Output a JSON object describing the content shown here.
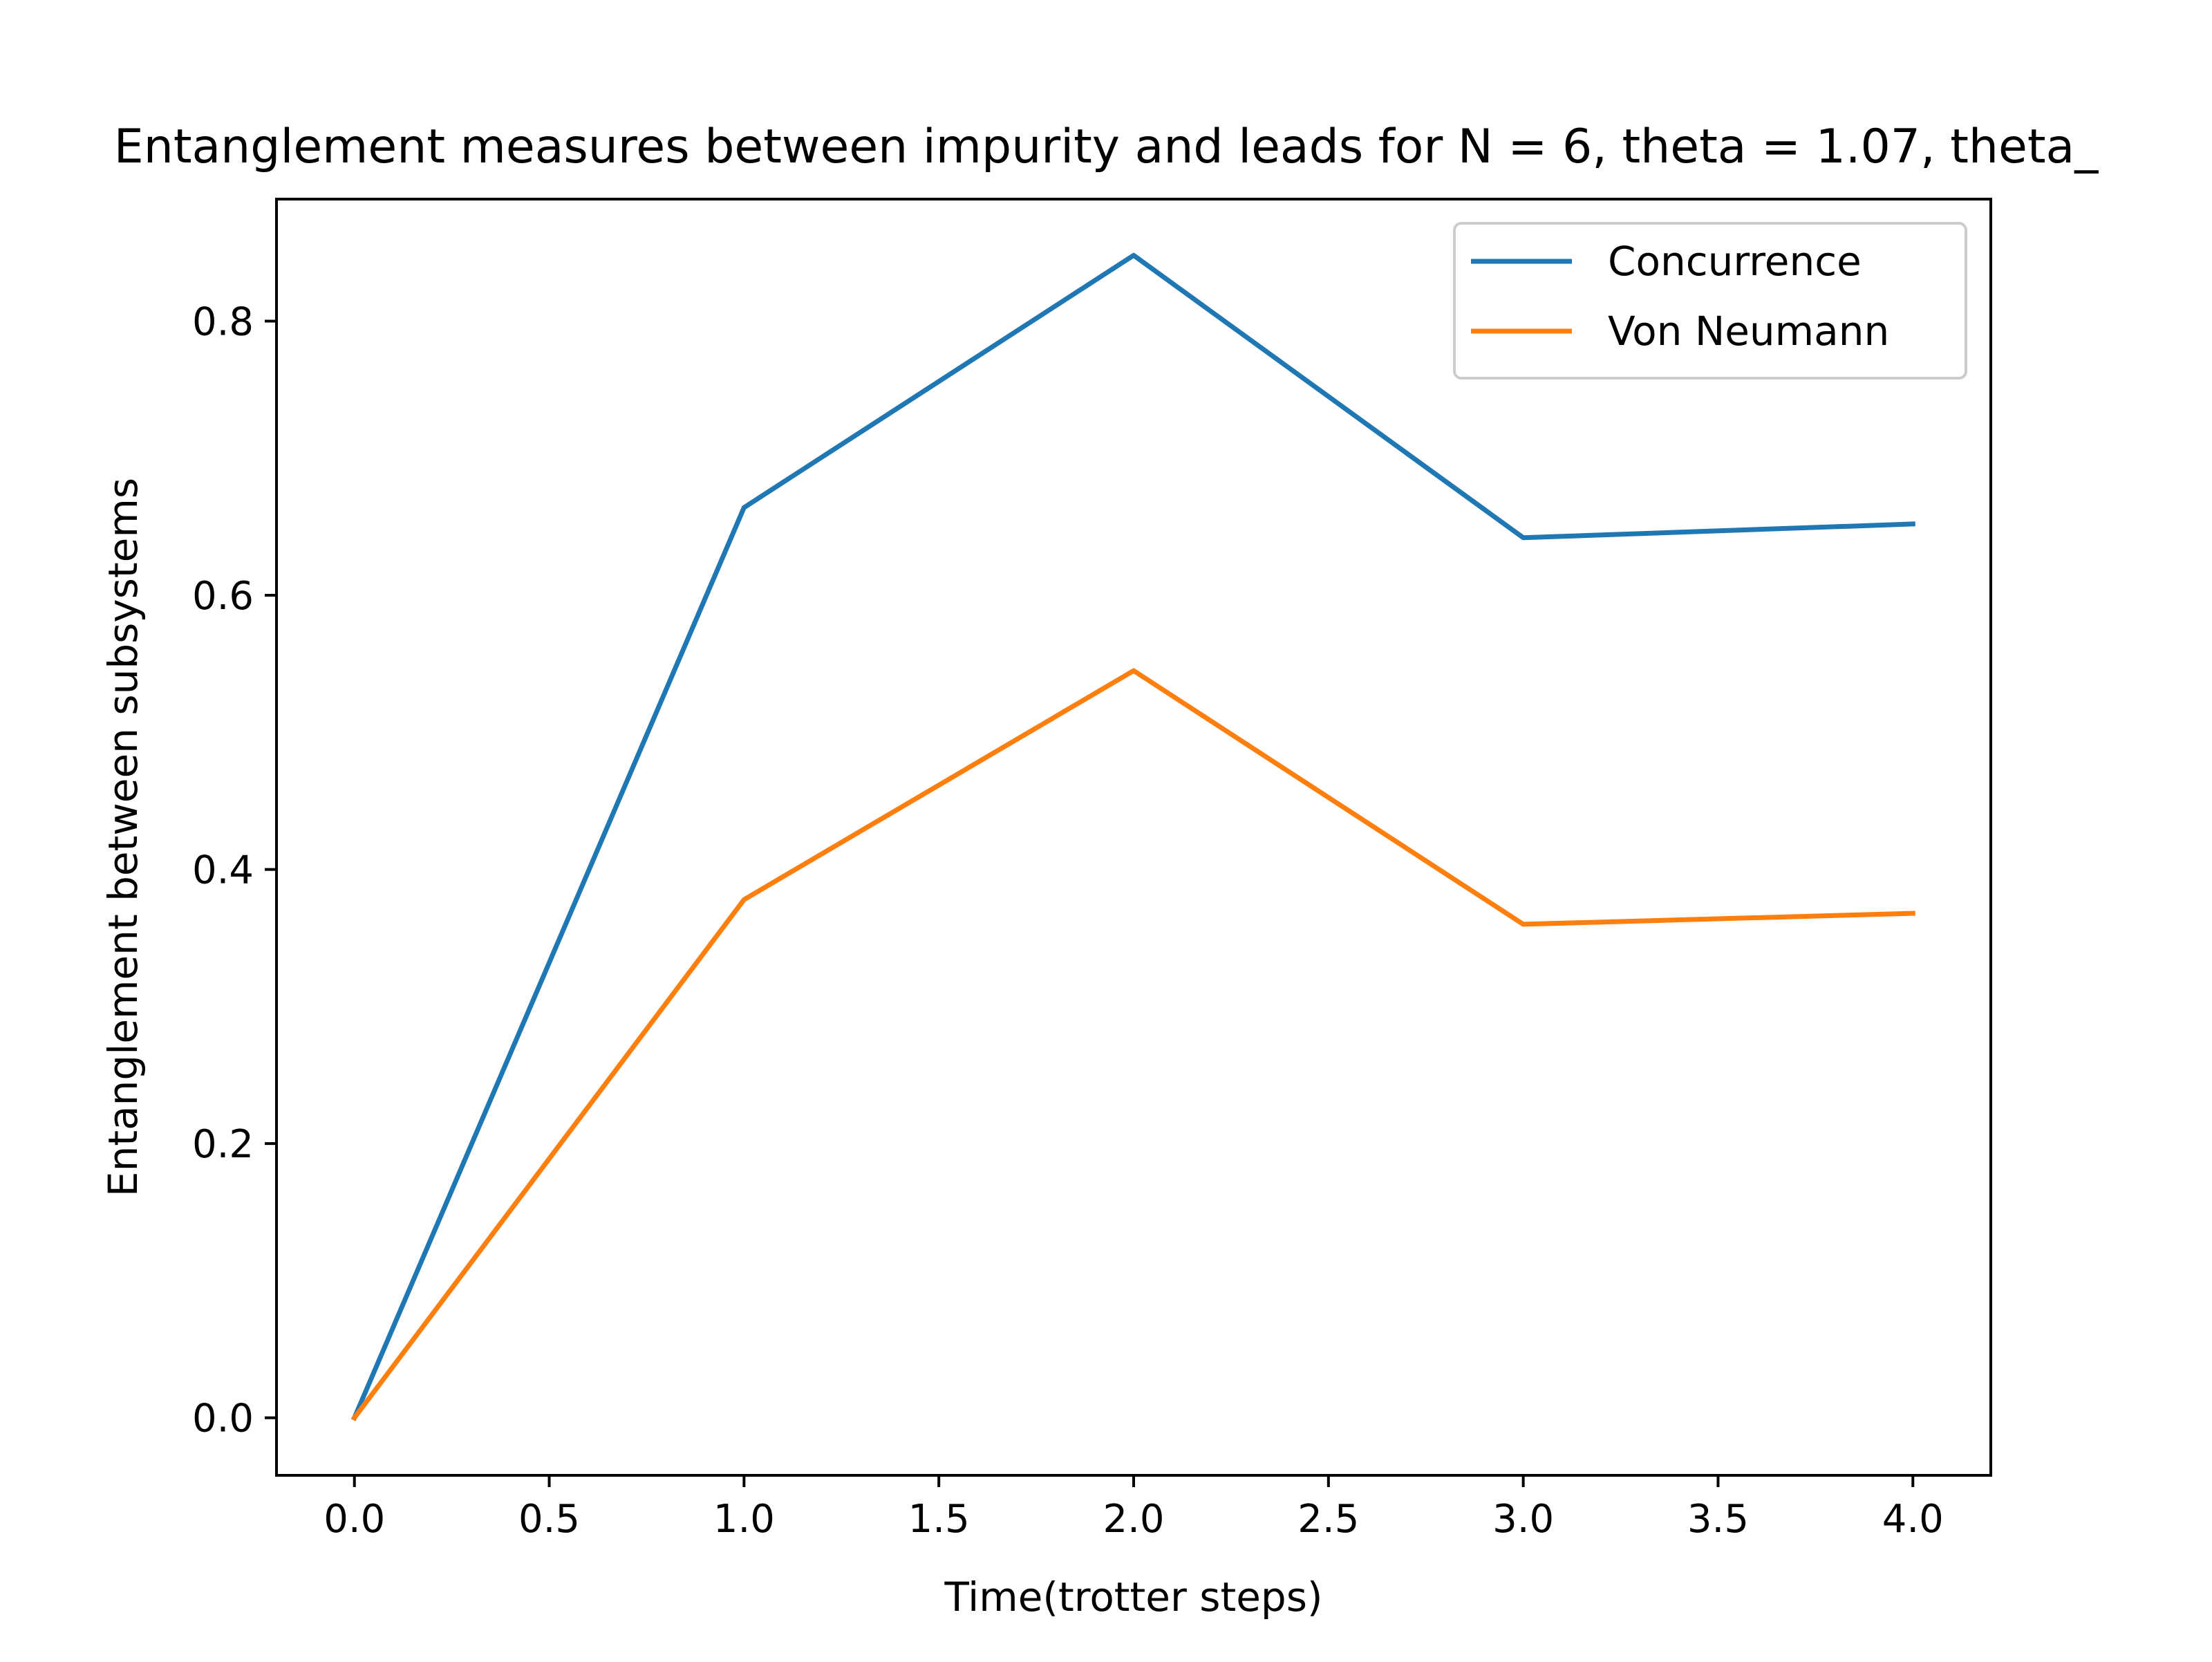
{
  "chart_data": {
    "type": "line",
    "title": "Entanglement measures between impurity and leads for N = 6, theta = 1.07, theta_",
    "xlabel": "Time(trotter steps)",
    "ylabel": "Entanglement between subsystems",
    "xlim": [
      -0.2,
      4.2
    ],
    "ylim": [
      -0.042,
      0.889
    ],
    "x": [
      0,
      1,
      2,
      3,
      4
    ],
    "xticks": [
      {
        "value": 0.0,
        "label": "0.0"
      },
      {
        "value": 0.5,
        "label": "0.5"
      },
      {
        "value": 1.0,
        "label": "1.0"
      },
      {
        "value": 1.5,
        "label": "1.5"
      },
      {
        "value": 2.0,
        "label": "2.0"
      },
      {
        "value": 2.5,
        "label": "2.5"
      },
      {
        "value": 3.0,
        "label": "3.0"
      },
      {
        "value": 3.5,
        "label": "3.5"
      },
      {
        "value": 4.0,
        "label": "4.0"
      }
    ],
    "yticks": [
      {
        "value": 0.0,
        "label": "0.0"
      },
      {
        "value": 0.2,
        "label": "0.2"
      },
      {
        "value": 0.4,
        "label": "0.4"
      },
      {
        "value": 0.6,
        "label": "0.6"
      },
      {
        "value": 0.8,
        "label": "0.8"
      }
    ],
    "series": [
      {
        "name": "Concurrence",
        "color": "#1f77b4",
        "values": [
          0.0,
          0.664,
          0.848,
          0.642,
          0.652
        ]
      },
      {
        "name": "Von Neumann",
        "color": "#ff7f0e",
        "values": [
          0.0,
          0.378,
          0.545,
          0.36,
          0.368
        ]
      }
    ],
    "grid": false,
    "legend": "top-right"
  }
}
